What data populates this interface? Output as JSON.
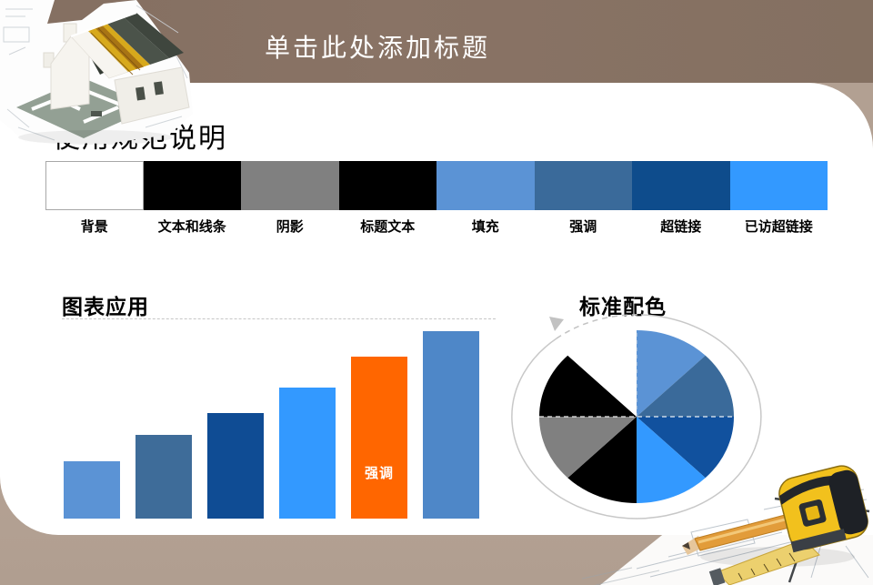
{
  "header": {
    "title_placeholder": "单击此处添加标题"
  },
  "panel": {
    "heading": "使用规范说明",
    "palette_strip": {
      "swatches": [
        {
          "label": "背景",
          "color": "#FFFFFF"
        },
        {
          "label": "文本和线条",
          "color": "#000000"
        },
        {
          "label": "阴影",
          "color": "#808080"
        },
        {
          "label": "标题文本",
          "color": "#000000"
        },
        {
          "label": "填充",
          "color": "#5B93D5"
        },
        {
          "label": "强调",
          "color": "#3A6A9A"
        },
        {
          "label": "超链接",
          "color": "#0E4C8C"
        },
        {
          "label": "已访超链接",
          "color": "#3399FF"
        }
      ]
    },
    "sections": {
      "bar_chart_heading": "图表应用",
      "pie_chart_heading": "标准配色"
    }
  },
  "chart_data": [
    {
      "type": "bar",
      "title": "图表应用",
      "categories": [
        "",
        "",
        "",
        "",
        "",
        ""
      ],
      "values": [
        63,
        92,
        116,
        144,
        178,
        206
      ],
      "value_note": "relative heights, no axis shown",
      "colors": [
        "#5B93D5",
        "#3E6C99",
        "#0F4C94",
        "#3399FF",
        "#FF6600",
        "#4E87C8"
      ],
      "bar_labels": [
        "",
        "",
        "",
        "",
        "强调",
        ""
      ],
      "xlabel": "",
      "ylabel": "",
      "axes_visible": false,
      "grid": false,
      "legend": "none"
    },
    {
      "type": "pie",
      "title": "标准配色",
      "values": [
        12.5,
        12.5,
        12.5,
        12.5,
        12.5,
        12.5,
        12.5,
        12.5
      ],
      "colors": [
        "#5B93D5",
        "#3A6A9A",
        "#11519E",
        "#3399FF",
        "#000000",
        "#808080",
        "#000000",
        "#FFFFFF"
      ],
      "start_angle_deg": 0,
      "direction": "clockwise",
      "legend": "none",
      "annotation": "surrounded by thin gray elliptical cycle arrow"
    }
  ],
  "theme": {
    "band_top_color": "#86705F",
    "band_bottom_color": "#B2A092",
    "panel_color": "#FFFFFF",
    "title_color": "#FFFFFF",
    "accent_orange": "#FF6600"
  }
}
